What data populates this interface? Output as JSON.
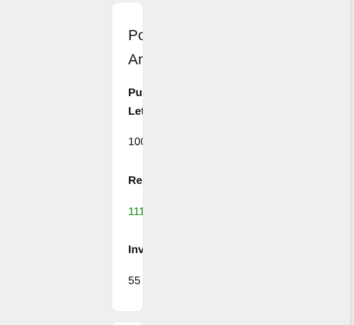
{
  "card": {
    "title": "Po\nAn",
    "purchase_label": "Pu\nLet",
    "purchase_value": "100",
    "return_label": "Re",
    "return_value": "111",
    "investment_label": "Inv",
    "investment_value": "55"
  },
  "colors": {
    "background": "#efefef",
    "card": "#ffffff",
    "positive": "#168a16",
    "text": "#111111"
  }
}
